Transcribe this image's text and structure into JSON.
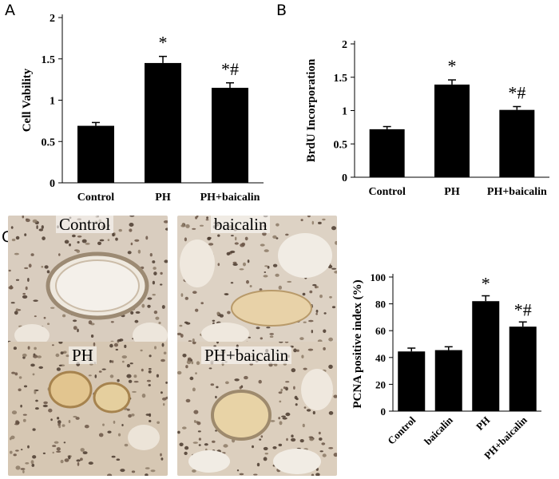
{
  "panels": {
    "a": "A",
    "b": "B",
    "c": "C"
  },
  "chart_data": [
    {
      "type": "bar",
      "ylabel": "Cell Vability",
      "categories": [
        "Control",
        "PH",
        "PH+baicalin"
      ],
      "values": [
        0.69,
        1.45,
        1.15
      ],
      "errors": [
        0.04,
        0.08,
        0.06
      ],
      "annotations": [
        "",
        "*",
        "*#"
      ],
      "ylim": [
        0,
        2
      ],
      "yticks": [
        "0",
        "0.5",
        "1",
        "1.5",
        "2"
      ],
      "colors": {
        "bar": "#000000"
      }
    },
    {
      "type": "bar",
      "ylabel": "BrdU Incorporation",
      "categories": [
        "Control",
        "PH",
        "PH+baicalin"
      ],
      "values": [
        0.72,
        1.39,
        1.01
      ],
      "errors": [
        0.04,
        0.07,
        0.05
      ],
      "annotations": [
        "",
        "*",
        "*#"
      ],
      "ylim": [
        0,
        2
      ],
      "yticks": [
        "0",
        "0.5",
        "1",
        "1.5",
        "2"
      ],
      "colors": {
        "bar": "#000000"
      }
    },
    {
      "type": "bar",
      "ylabel": "PCNA positive index (%)",
      "categories": [
        "Control",
        "baicalin",
        "PH",
        "PH+baicalin"
      ],
      "values": [
        44.5,
        45.5,
        82,
        63
      ],
      "errors": [
        2.5,
        2.5,
        4,
        3.5
      ],
      "annotations": [
        "",
        "",
        "*",
        "*#"
      ],
      "ylim": [
        0,
        100
      ],
      "yticks": [
        "0",
        "20",
        "40",
        "60",
        "80",
        "100"
      ],
      "colors": {
        "bar": "#000000"
      }
    }
  ],
  "micrographs": [
    {
      "label": "Control"
    },
    {
      "label": "baicalin"
    },
    {
      "label": "PH"
    },
    {
      "label": "PH+baicalin"
    }
  ]
}
